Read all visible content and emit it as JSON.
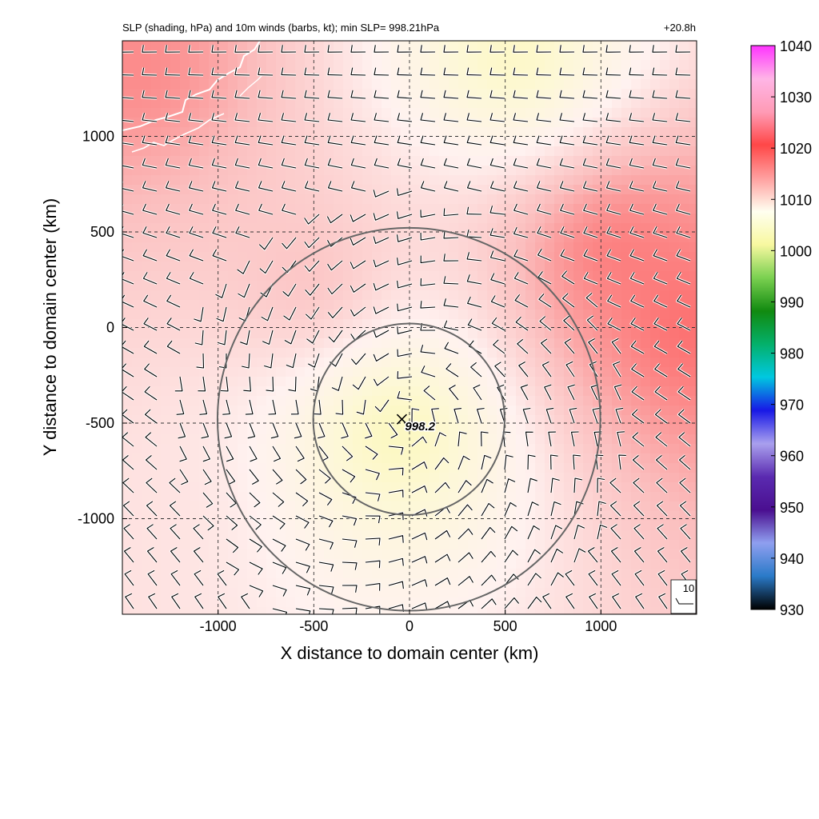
{
  "title": "SLP (shading, hPa) and 10m winds (barbs, kt); min SLP= 998.21hPa",
  "forecast_time": "+20.8h",
  "colors": {
    "p1000": "#fbf7a0",
    "p1005": "#fdf8d6",
    "p1010": "#fff2f0",
    "p1015": "#fbbdbd",
    "p1020": "#fc5c5c",
    "ring": "#666666",
    "coast": "#ffffff"
  },
  "chart_data": {
    "type": "heatmap",
    "title": "SLP (shading, hPa) and 10m winds (barbs, kt); min SLP= 998.21hPa",
    "xlabel": "X distance to domain center (km)",
    "ylabel": "Y distance to domain center (km)",
    "xlim": [
      -1500,
      1500
    ],
    "ylim": [
      -1500,
      1500
    ],
    "xticks": [
      -1000,
      -500,
      0,
      500,
      1000
    ],
    "yticks": [
      -1000,
      -500,
      0,
      500,
      1000
    ],
    "xtick_labels": [
      "-1000",
      "-500",
      "0",
      "500",
      "1000"
    ],
    "ytick_labels": [
      "-1000",
      "-500",
      "0",
      "500",
      "1000"
    ],
    "grid": true,
    "colorbar": {
      "units": "hPa",
      "ticks": [
        930,
        940,
        950,
        960,
        970,
        980,
        990,
        1000,
        1010,
        1020,
        1030,
        1040
      ],
      "tick_labels": [
        "930",
        "940",
        "950",
        "960",
        "970",
        "980",
        "990",
        "1000",
        "1010",
        "1020",
        "1030",
        "1040"
      ],
      "colors": [
        "#000000",
        "#2a7ac8",
        "#8f9ff0",
        "#4a0f90",
        "#5a2ab0",
        "#a9a0ee",
        "#1818e6",
        "#00c8e0",
        "#04b06a",
        "#118a10",
        "#7ad050",
        "#f8f8a0",
        "#fffff0",
        "#ff9f9f",
        "#ff4747",
        "#ff9bb5",
        "#ffb5e6",
        "#ff33ff"
      ]
    },
    "min_slp": {
      "x": -40,
      "y": -480,
      "label": "998.2",
      "marker": "X"
    },
    "pressure_centers": [
      {
        "x": -70,
        "y": -520,
        "slp": 998.6
      },
      {
        "x": 550,
        "y": 1420,
        "slp": 1000.5
      },
      {
        "x": 1050,
        "y": 400,
        "slp": 1020.5
      },
      {
        "x": 1450,
        "y": 0,
        "slp": 1021
      },
      {
        "x": -1400,
        "y": 1350,
        "slp": 1019
      },
      {
        "x": -500,
        "y": 200,
        "slp": 1015.5
      },
      {
        "x": -1300,
        "y": -1000,
        "slp": 1011.5
      }
    ],
    "background_slp": 1016,
    "rings": [
      {
        "center": [
          -3,
          -480
        ],
        "radius_km": 500
      },
      {
        "center": [
          -3,
          -480
        ],
        "radius_km": 1000
      }
    ],
    "reference_barb_label": "10"
  }
}
